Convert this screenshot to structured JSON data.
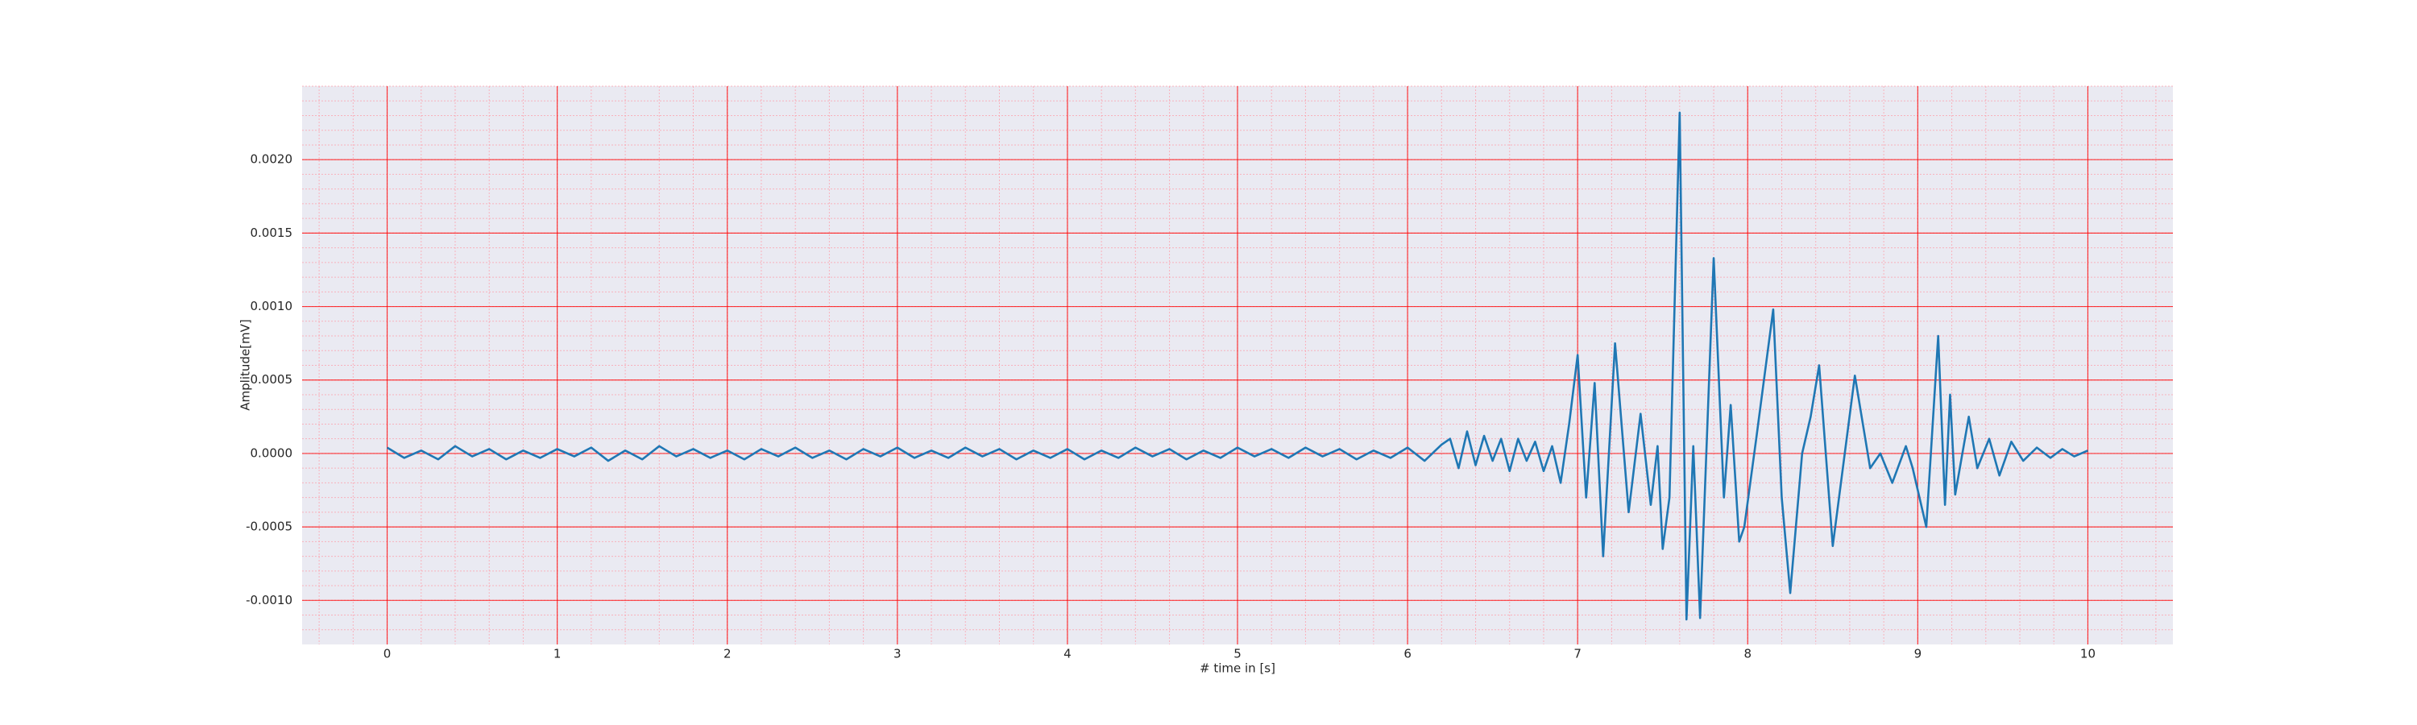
{
  "chart_data": {
    "type": "line",
    "xlabel": "# time in [s]",
    "ylabel": "Amplitude[mV]",
    "grid": true,
    "minor_grid": true,
    "xlim": [
      -0.5,
      10.5
    ],
    "ylim": [
      -0.0013,
      0.0025
    ],
    "xticks": [
      0,
      1,
      2,
      3,
      4,
      5,
      6,
      7,
      8,
      9,
      10
    ],
    "yticks": [
      {
        "value": -0.001,
        "label": "-0.0010"
      },
      {
        "value": -0.0005,
        "label": "-0.0005"
      },
      {
        "value": 0,
        "label": "0.0000"
      },
      {
        "value": 0.0005,
        "label": "0.0005"
      },
      {
        "value": 0.001,
        "label": "0.0010"
      },
      {
        "value": 0.0015,
        "label": "0.0015"
      },
      {
        "value": 0.002,
        "label": "0.0020"
      }
    ],
    "x": [
      0,
      0.1,
      0.2,
      0.3,
      0.4,
      0.5,
      0.6,
      0.7,
      0.8,
      0.9,
      1.0,
      1.1,
      1.2,
      1.3,
      1.4,
      1.5,
      1.6,
      1.7,
      1.8,
      1.9,
      2.0,
      2.1,
      2.2,
      2.3,
      2.4,
      2.5,
      2.6,
      2.7,
      2.8,
      2.9,
      3.0,
      3.1,
      3.2,
      3.3,
      3.4,
      3.5,
      3.6,
      3.7,
      3.8,
      3.9,
      4.0,
      4.1,
      4.2,
      4.3,
      4.4,
      4.5,
      4.6,
      4.7,
      4.8,
      4.9,
      5.0,
      5.1,
      5.2,
      5.3,
      5.4,
      5.5,
      5.6,
      5.7,
      5.8,
      5.9,
      6.0,
      6.1,
      6.2,
      6.25,
      6.3,
      6.35,
      6.4,
      6.45,
      6.5,
      6.55,
      6.6,
      6.65,
      6.7,
      6.75,
      6.8,
      6.85,
      6.9,
      6.95,
      7.0,
      7.05,
      7.1,
      7.15,
      7.22,
      7.3,
      7.37,
      7.43,
      7.47,
      7.5,
      7.54,
      7.6,
      7.64,
      7.68,
      7.72,
      7.8,
      7.86,
      7.9,
      7.95,
      7.98,
      8.05,
      8.15,
      8.2,
      8.25,
      8.32,
      8.37,
      8.42,
      8.5,
      8.63,
      8.72,
      8.78,
      8.85,
      8.93,
      8.97,
      9.05,
      9.12,
      9.16,
      9.19,
      9.22,
      9.3,
      9.35,
      9.42,
      9.48,
      9.55,
      9.62,
      9.7,
      9.78,
      9.85,
      9.92,
      10.0
    ],
    "series": [
      {
        "color": "#1f77b4",
        "values": [
          4e-05,
          -3e-05,
          2e-05,
          -4e-05,
          5e-05,
          -2e-05,
          3e-05,
          -4e-05,
          2e-05,
          -3e-05,
          3e-05,
          -2e-05,
          4e-05,
          -5e-05,
          2e-05,
          -4e-05,
          5e-05,
          -2e-05,
          3e-05,
          -3e-05,
          2e-05,
          -4e-05,
          3e-05,
          -2e-05,
          4e-05,
          -3e-05,
          2e-05,
          -4e-05,
          3e-05,
          -2e-05,
          4e-05,
          -3e-05,
          2e-05,
          -3e-05,
          4e-05,
          -2e-05,
          3e-05,
          -4e-05,
          2e-05,
          -3e-05,
          3e-05,
          -4e-05,
          2e-05,
          -3e-05,
          4e-05,
          -2e-05,
          3e-05,
          -4e-05,
          2e-05,
          -3e-05,
          4e-05,
          -2e-05,
          3e-05,
          -3e-05,
          4e-05,
          -2e-05,
          3e-05,
          -4e-05,
          2e-05,
          -3e-05,
          4e-05,
          -5e-05,
          6e-05,
          0.0001,
          -0.0001,
          0.00015,
          -8e-05,
          0.00012,
          -5e-05,
          0.0001,
          -0.00012,
          0.0001,
          -5e-05,
          8e-05,
          -0.00012,
          5e-05,
          -0.0002,
          0.0002,
          0.00067,
          -0.0003,
          0.00048,
          -0.0007,
          0.00075,
          -0.0004,
          0.00027,
          -0.00035,
          5e-05,
          -0.00065,
          -0.0003,
          0.00232,
          -0.00113,
          5e-05,
          -0.00112,
          0.00133,
          -0.0003,
          0.00033,
          -0.0006,
          -0.0005,
          0.0001,
          0.00098,
          -0.0003,
          -0.00095,
          0.0,
          0.00025,
          0.0006,
          -0.00063,
          0.00053,
          -0.0001,
          0.0,
          -0.0002,
          5e-05,
          -0.0001,
          -0.0005,
          0.0008,
          -0.00035,
          0.0004,
          -0.00028,
          0.00025,
          -0.0001,
          0.0001,
          -0.00015,
          8e-05,
          -5e-05,
          4e-05,
          -3e-05,
          3e-05,
          -2e-05,
          2e-05
        ]
      }
    ]
  }
}
